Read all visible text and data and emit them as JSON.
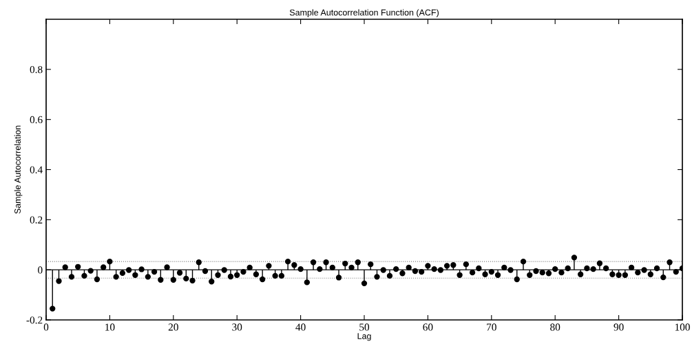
{
  "chart_data": {
    "type": "lollipop",
    "title": "Sample Autocorrelation Function (ACF)",
    "xlabel": "Lag",
    "ylabel": "Sample Autocorrelation",
    "xlim": [
      0,
      100
    ],
    "ylim": [
      -0.2,
      1
    ],
    "xticks": [
      0,
      10,
      20,
      30,
      40,
      50,
      60,
      70,
      80,
      90,
      100
    ],
    "yticks": [
      -0.2,
      0,
      0.2,
      0.4,
      0.6,
      0.8
    ],
    "grid": false,
    "legend": false,
    "marker": "circle",
    "ref_lines": [
      {
        "axis": "y",
        "value": 0,
        "color": "#000000",
        "line_style": "solid"
      },
      {
        "axis": "y",
        "value": 0.033,
        "color": "#808080",
        "line_style": "dotted"
      },
      {
        "axis": "y",
        "value": -0.033,
        "color": "#808080",
        "line_style": "dotted"
      }
    ],
    "series": [
      {
        "color": "#000000",
        "x": [
          1,
          2,
          3,
          4,
          5,
          6,
          7,
          8,
          9,
          10,
          11,
          12,
          13,
          14,
          15,
          16,
          17,
          18,
          19,
          20,
          21,
          22,
          23,
          24,
          25,
          26,
          27,
          28,
          29,
          30,
          31,
          32,
          33,
          34,
          35,
          36,
          37,
          38,
          39,
          40,
          41,
          42,
          43,
          44,
          45,
          46,
          47,
          48,
          49,
          50,
          51,
          52,
          53,
          54,
          55,
          56,
          57,
          58,
          59,
          60,
          61,
          62,
          63,
          64,
          65,
          66,
          67,
          68,
          69,
          70,
          71,
          72,
          73,
          74,
          75,
          76,
          77,
          78,
          79,
          80,
          81,
          82,
          83,
          84,
          85,
          86,
          87,
          88,
          89,
          90,
          91,
          92,
          93,
          94,
          95,
          96,
          97,
          98,
          99,
          100
        ],
        "values": [
          -0.155,
          -0.045,
          0.01,
          -0.028,
          0.012,
          -0.024,
          -0.004,
          -0.038,
          0.01,
          0.033,
          -0.028,
          -0.013,
          -0.001,
          -0.021,
          0.002,
          -0.028,
          -0.008,
          -0.04,
          0.01,
          -0.04,
          -0.012,
          -0.035,
          -0.043,
          0.03,
          -0.005,
          -0.047,
          -0.021,
          -0.001,
          -0.027,
          -0.021,
          -0.008,
          0.009,
          -0.018,
          -0.038,
          0.016,
          -0.024,
          -0.024,
          0.033,
          0.019,
          0.003,
          -0.05,
          0.03,
          0.003,
          0.03,
          0.009,
          -0.031,
          0.025,
          0.009,
          0.03,
          -0.054,
          0.022,
          -0.028,
          -0.001,
          -0.024,
          0.003,
          -0.014,
          0.009,
          -0.005,
          -0.008,
          0.016,
          0.003,
          -0.001,
          0.016,
          0.019,
          -0.021,
          0.022,
          -0.011,
          0.006,
          -0.018,
          -0.008,
          -0.021,
          0.009,
          -0.001,
          -0.038,
          0.033,
          -0.021,
          -0.005,
          -0.011,
          -0.014,
          0.003,
          -0.011,
          0.006,
          0.049,
          -0.018,
          0.006,
          0.003,
          0.026,
          0.006,
          -0.018,
          -0.021,
          -0.021,
          0.009,
          -0.011,
          -0.001,
          -0.018,
          0.006,
          -0.03,
          0.03,
          -0.008,
          0.006
        ]
      }
    ]
  }
}
